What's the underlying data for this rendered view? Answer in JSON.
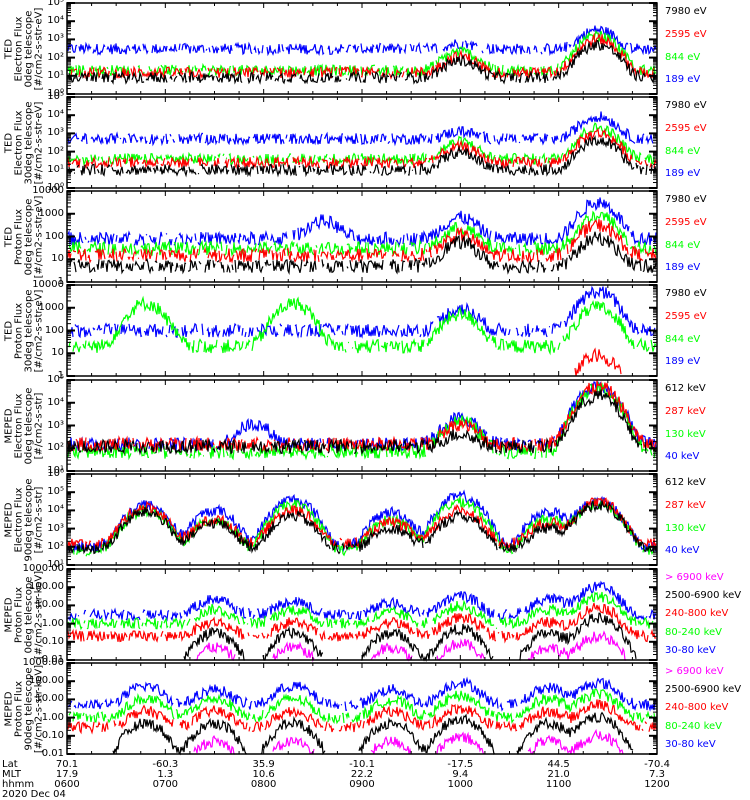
{
  "colors": {
    "black": "#000000",
    "red": "#ff0000",
    "green": "#00ff00",
    "blue": "#0000ff",
    "magenta": "#ff00ff"
  },
  "footer": {
    "row_labels": [
      "Lat",
      "MLT",
      "hhmm",
      "2020 Dec 04"
    ],
    "columns": [
      {
        "lat": "70.1",
        "mlt": "17.9",
        "hhmm": "0600"
      },
      {
        "lat": "-60.3",
        "mlt": "1.3",
        "hhmm": "0700"
      },
      {
        "lat": "35.9",
        "mlt": "10.6",
        "hhmm": "0800"
      },
      {
        "lat": "-10.1",
        "mlt": "22.2",
        "hhmm": "0900"
      },
      {
        "lat": "-17.5",
        "mlt": "9.4",
        "hhmm": "1000"
      },
      {
        "lat": "44.5",
        "mlt": "21.0",
        "hhmm": "1100"
      },
      {
        "lat": "-70.4",
        "mlt": "7.3",
        "hhmm": "1200"
      }
    ]
  },
  "chart_data": [
    {
      "type": "line",
      "ylabel": [
        "TED",
        "Electron Flux",
        "0deg telescope",
        "[#/cm2-s-str-eV]"
      ],
      "yscale": "log",
      "ylim": [
        1,
        100000
      ],
      "yticks": [
        "10⁰",
        "10¹",
        "10²",
        "10³",
        "10⁴",
        "10⁵"
      ],
      "legend": [
        {
          "text": "7980 eV",
          "color": "black"
        },
        {
          "text": "2595 eV",
          "color": "red"
        },
        {
          "text": "844 eV",
          "color": "green"
        },
        {
          "text": "189 eV",
          "color": "blue"
        }
      ],
      "series": [
        {
          "name": "189 eV",
          "base": 300,
          "peaks": [
            [
              10.0,
              300
            ],
            [
              11.4,
              3000
            ]
          ]
        },
        {
          "name": "844 eV",
          "base": 20,
          "peaks": [
            [
              10.0,
              200
            ],
            [
              11.4,
              1500
            ]
          ]
        },
        {
          "name": "2595 eV",
          "base": 15,
          "peaks": [
            [
              10.0,
              100
            ],
            [
              11.4,
              1000
            ]
          ]
        },
        {
          "name": "7980 eV",
          "base": 8,
          "peaks": [
            [
              10.0,
              60
            ],
            [
              11.4,
              500
            ]
          ]
        }
      ]
    },
    {
      "type": "line",
      "ylabel": [
        "TED",
        "Electron Flux",
        "30deg telescope",
        "[#/cm2-s-str-eV]"
      ],
      "yscale": "log",
      "ylim": [
        1,
        100000
      ],
      "yticks": [
        "10⁰",
        "10¹",
        "10²",
        "10³",
        "10⁴",
        "10⁵"
      ],
      "legend": [
        {
          "text": "7980 eV",
          "color": "black"
        },
        {
          "text": "2595 eV",
          "color": "red"
        },
        {
          "text": "844 eV",
          "color": "green"
        },
        {
          "text": "189 eV",
          "color": "blue"
        }
      ],
      "series": [
        {
          "name": "189 eV",
          "base": 500,
          "peaks": [
            [
              10.0,
              800
            ],
            [
              11.4,
              8000
            ]
          ]
        },
        {
          "name": "844 eV",
          "base": 40,
          "peaks": [
            [
              10.0,
              300
            ],
            [
              11.4,
              2000
            ]
          ]
        },
        {
          "name": "2595 eV",
          "base": 25,
          "peaks": [
            [
              10.0,
              150
            ],
            [
              11.4,
              1000
            ]
          ]
        },
        {
          "name": "7980 eV",
          "base": 10,
          "peaks": [
            [
              10.0,
              80
            ],
            [
              11.4,
              400
            ]
          ]
        }
      ]
    },
    {
      "type": "line",
      "ylabel": [
        "TED",
        "Proton Flux",
        "0deg telescope",
        "[#/cm2-s-str-eV]"
      ],
      "yscale": "log",
      "ylim": [
        1,
        10000
      ],
      "yticks": [
        "1",
        "10",
        "100",
        "1000",
        "10000"
      ],
      "legend": [
        {
          "text": "7980 eV",
          "color": "black"
        },
        {
          "text": "2595 eV",
          "color": "red"
        },
        {
          "text": "844 eV",
          "color": "green"
        },
        {
          "text": "189 eV",
          "color": "blue"
        }
      ],
      "series": [
        {
          "name": "189 eV",
          "base": 80,
          "peaks": [
            [
              8.6,
              400
            ],
            [
              10.0,
              600
            ],
            [
              11.4,
              3000
            ]
          ]
        },
        {
          "name": "844 eV",
          "base": 30,
          "peaks": [
            [
              10.0,
              200
            ],
            [
              11.4,
              800
            ]
          ]
        },
        {
          "name": "2595 eV",
          "base": 15,
          "peaks": [
            [
              10.0,
              100
            ],
            [
              11.4,
              300
            ]
          ]
        },
        {
          "name": "7980 eV",
          "base": 5,
          "peaks": [
            [
              10.0,
              50
            ],
            [
              11.4,
              80
            ]
          ]
        }
      ]
    },
    {
      "type": "line",
      "ylabel": [
        "TED",
        "Proton Flux",
        "30deg telescope",
        "[#/cm2-s-str-eV]"
      ],
      "yscale": "log",
      "ylim": [
        1,
        10000
      ],
      "yticks": [
        "1",
        "10",
        "100",
        "1000",
        "10000"
      ],
      "legend": [
        {
          "text": "7980 eV",
          "color": "black"
        },
        {
          "text": "2595 eV",
          "color": "red"
        },
        {
          "text": "844 eV",
          "color": "green"
        },
        {
          "text": "189 eV",
          "color": "blue"
        }
      ],
      "series": [
        {
          "name": "189 eV",
          "base": 100,
          "peaks": [
            [
              10.0,
              800
            ],
            [
              11.4,
              5000
            ]
          ]
        },
        {
          "name": "844 eV",
          "base": 20,
          "peaks": [
            [
              6.8,
              1500
            ],
            [
              8.3,
              1500
            ],
            [
              10.0,
              500
            ],
            [
              11.4,
              1000
            ]
          ]
        },
        {
          "name": "2595 eV",
          "base": 0,
          "peaks": [
            [
              11.4,
              8
            ]
          ]
        },
        {
          "name": "7980 eV",
          "base": 0,
          "peaks": []
        }
      ]
    },
    {
      "type": "line",
      "ylabel": [
        "MEPED",
        "Electron Flux",
        "0deg telescope",
        "[#/cm2-s-str]"
      ],
      "yscale": "log",
      "ylim": [
        10,
        100000
      ],
      "yticks": [
        "10¹",
        "10²",
        "10³",
        "10⁴",
        "10⁵"
      ],
      "legend": [
        {
          "text": "612 keV",
          "color": "black"
        },
        {
          "text": "287 keV",
          "color": "red"
        },
        {
          "text": "130 keV",
          "color": "green"
        },
        {
          "text": "40 keV",
          "color": "blue"
        }
      ],
      "series": [
        {
          "name": "40 keV",
          "base": 150,
          "peaks": [
            [
              7.9,
              1000
            ],
            [
              10.0,
              2000
            ],
            [
              11.4,
              50000
            ]
          ]
        },
        {
          "name": "130 keV",
          "base": 70,
          "peaks": [
            [
              10.0,
              1500
            ],
            [
              11.4,
              40000
            ]
          ]
        },
        {
          "name": "287 keV",
          "base": 150,
          "peaks": [
            [
              10.0,
              1000
            ],
            [
              11.4,
              50000
            ]
          ]
        },
        {
          "name": "612 keV",
          "base": 120,
          "peaks": [
            [
              10.0,
              300
            ],
            [
              11.4,
              20000
            ]
          ]
        }
      ]
    },
    {
      "type": "line",
      "ylabel": [
        "MEPED",
        "Electron Flux",
        "90deg telescope",
        "[#/cm2-s-str]"
      ],
      "yscale": "log",
      "ylim": [
        10,
        1000000
      ],
      "yticks": [
        "10¹",
        "10²",
        "10³",
        "10⁴",
        "10⁵",
        "10⁶"
      ],
      "legend": [
        {
          "text": "612 keV",
          "color": "black"
        },
        {
          "text": "287 keV",
          "color": "red"
        },
        {
          "text": "130 keV",
          "color": "green"
        },
        {
          "text": "40 keV",
          "color": "blue"
        }
      ],
      "series": [
        {
          "name": "40 keV",
          "base": 100,
          "peaks": [
            [
              6.8,
              20000
            ],
            [
              7.5,
              10000
            ],
            [
              8.3,
              40000
            ],
            [
              9.3,
              8000
            ],
            [
              10.0,
              60000
            ],
            [
              10.9,
              8000
            ],
            [
              11.4,
              30000
            ]
          ]
        },
        {
          "name": "130 keV",
          "base": 60,
          "peaks": [
            [
              6.8,
              10000
            ],
            [
              7.5,
              3000
            ],
            [
              8.3,
              20000
            ],
            [
              9.3,
              3000
            ],
            [
              10.0,
              30000
            ],
            [
              10.9,
              3000
            ],
            [
              11.4,
              25000
            ]
          ]
        },
        {
          "name": "287 keV",
          "base": 150,
          "peaks": [
            [
              6.8,
              15000
            ],
            [
              7.5,
              3000
            ],
            [
              8.3,
              10000
            ],
            [
              9.3,
              2000
            ],
            [
              10.0,
              10000
            ],
            [
              10.9,
              2000
            ],
            [
              11.4,
              30000
            ]
          ]
        },
        {
          "name": "612 keV",
          "base": 80,
          "peaks": [
            [
              6.8,
              8000
            ],
            [
              7.5,
              2000
            ],
            [
              8.3,
              5000
            ],
            [
              9.3,
              1000
            ],
            [
              10.0,
              5000
            ],
            [
              10.9,
              1000
            ],
            [
              11.4,
              20000
            ]
          ]
        }
      ]
    },
    {
      "type": "line",
      "ylabel": [
        "MEPED",
        "Proton Flux",
        "0deg telescope",
        "[#/cm2-s-str-keV]"
      ],
      "yscale": "log",
      "ylim": [
        0.01,
        1000
      ],
      "yticks": [
        "0.01",
        "0.10",
        "1.00",
        "10.00",
        "100.00",
        "1000.00"
      ],
      "legend": [
        {
          "text": "> 6900 keV",
          "color": "magenta"
        },
        {
          "text": "2500-6900 keV",
          "color": "black"
        },
        {
          "text": "240-800 keV",
          "color": "red"
        },
        {
          "text": "80-240 keV",
          "color": "green"
        },
        {
          "text": "30-80 keV",
          "color": "blue"
        }
      ],
      "series": [
        {
          "name": "30-80 keV",
          "base": 3,
          "peaks": [
            [
              7.5,
              20
            ],
            [
              8.3,
              15
            ],
            [
              9.3,
              10
            ],
            [
              10.0,
              30
            ],
            [
              10.9,
              20
            ],
            [
              11.4,
              100
            ]
          ]
        },
        {
          "name": "80-240 keV",
          "base": 1,
          "peaks": [
            [
              7.5,
              5
            ],
            [
              8.3,
              5
            ],
            [
              9.3,
              3
            ],
            [
              10.0,
              8
            ],
            [
              10.9,
              5
            ],
            [
              11.4,
              30
            ]
          ]
        },
        {
          "name": "240-800 keV",
          "base": 0.2,
          "peaks": [
            [
              7.5,
              1
            ],
            [
              8.3,
              1
            ],
            [
              9.3,
              1
            ],
            [
              10.0,
              2
            ],
            [
              10.9,
              1
            ],
            [
              11.4,
              8
            ]
          ]
        },
        {
          "name": "2500-6900 keV",
          "base": 0,
          "peaks": [
            [
              7.5,
              0.3
            ],
            [
              8.3,
              0.3
            ],
            [
              9.3,
              0.3
            ],
            [
              10.0,
              0.5
            ],
            [
              10.9,
              0.3
            ],
            [
              11.4,
              2
            ]
          ]
        },
        {
          "name": "> 6900 keV",
          "base": 0,
          "peaks": [
            [
              7.5,
              0.05
            ],
            [
              8.3,
              0.05
            ],
            [
              9.3,
              0.05
            ],
            [
              10.0,
              0.08
            ],
            [
              10.9,
              0.05
            ],
            [
              11.4,
              0.2
            ]
          ]
        }
      ]
    },
    {
      "type": "line",
      "ylabel": [
        "MEPED",
        "Proton Flux",
        "90deg telescope",
        "[#/cm2-s-str-keV]"
      ],
      "yscale": "log",
      "ylim": [
        0.01,
        1000
      ],
      "yticks": [
        "0.01",
        "0.10",
        "1.00",
        "10.00",
        "100.00",
        "1000.00"
      ],
      "legend": [
        {
          "text": "> 6900 keV",
          "color": "magenta"
        },
        {
          "text": "2500-6900 keV",
          "color": "black"
        },
        {
          "text": "240-800 keV",
          "color": "red"
        },
        {
          "text": "80-240 keV",
          "color": "green"
        },
        {
          "text": "30-80 keV",
          "color": "blue"
        }
      ],
      "series": [
        {
          "name": "30-80 keV",
          "base": 5,
          "peaks": [
            [
              6.8,
              50
            ],
            [
              7.5,
              30
            ],
            [
              8.3,
              50
            ],
            [
              9.3,
              30
            ],
            [
              10.0,
              80
            ],
            [
              10.9,
              40
            ],
            [
              11.4,
              80
            ]
          ]
        },
        {
          "name": "80-240 keV",
          "base": 1,
          "peaks": [
            [
              6.8,
              10
            ],
            [
              7.5,
              10
            ],
            [
              8.3,
              10
            ],
            [
              9.3,
              8
            ],
            [
              10.0,
              15
            ],
            [
              10.9,
              10
            ],
            [
              11.4,
              20
            ]
          ]
        },
        {
          "name": "240-800 keV",
          "base": 0.3,
          "peaks": [
            [
              6.8,
              2
            ],
            [
              7.5,
              2
            ],
            [
              8.3,
              2
            ],
            [
              9.3,
              2
            ],
            [
              10.0,
              3
            ],
            [
              10.9,
              2
            ],
            [
              11.4,
              5
            ]
          ]
        },
        {
          "name": "2500-6900 keV",
          "base": 0,
          "peaks": [
            [
              6.8,
              0.5
            ],
            [
              7.5,
              0.5
            ],
            [
              8.3,
              0.5
            ],
            [
              9.3,
              0.5
            ],
            [
              10.0,
              0.8
            ],
            [
              10.9,
              0.5
            ],
            [
              11.4,
              1
            ]
          ]
        },
        {
          "name": "> 6900 keV",
          "base": 0,
          "peaks": [
            [
              7.5,
              0.05
            ],
            [
              8.3,
              0.05
            ],
            [
              9.3,
              0.05
            ],
            [
              10.0,
              0.08
            ],
            [
              10.9,
              0.05
            ],
            [
              11.4,
              0.1
            ]
          ]
        }
      ]
    }
  ],
  "x_range_hours": [
    6,
    12
  ]
}
